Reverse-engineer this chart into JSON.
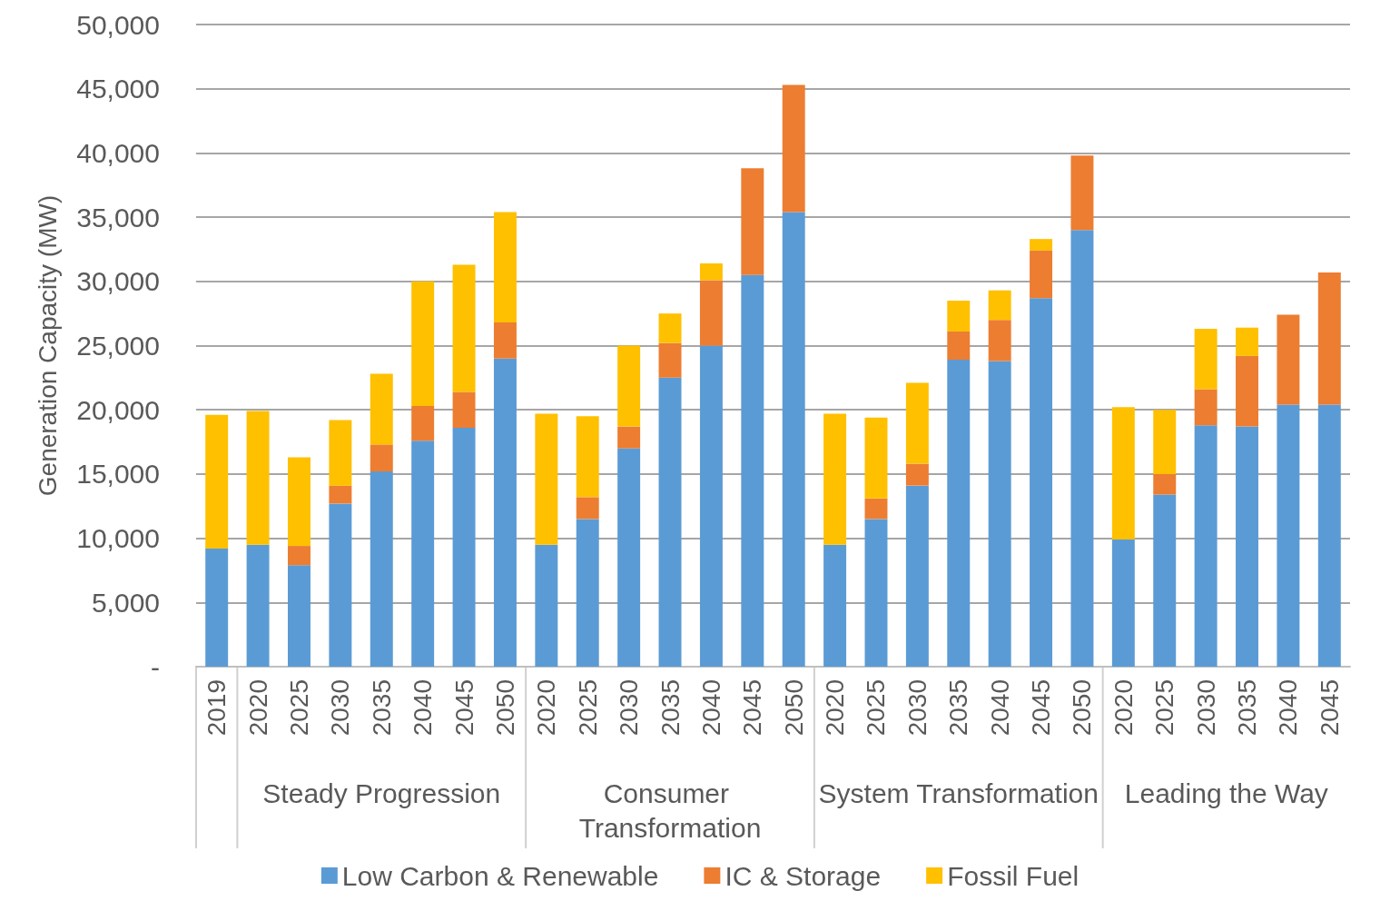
{
  "chart_data": {
    "type": "bar",
    "stacked": true,
    "ylabel": "Generation Capacity (MW)",
    "categories": [
      "2019",
      "2020",
      "2025",
      "2030",
      "2035",
      "2040",
      "2045",
      "2050",
      "2020",
      "2025",
      "2030",
      "2035",
      "2040",
      "2045",
      "2050",
      "2020",
      "2025",
      "2030",
      "2035",
      "2040",
      "2045",
      "2050",
      "2020",
      "2025",
      "2030",
      "2035",
      "2040",
      "2045"
    ],
    "series": [
      {
        "name": "Low Carbon & Renewable",
        "color": "#5b9bd5",
        "values": [
          9200,
          9500,
          7900,
          12700,
          15200,
          17600,
          18600,
          24000,
          9500,
          11500,
          17000,
          22500,
          25000,
          30500,
          35400,
          9500,
          11500,
          14100,
          23900,
          23800,
          28700,
          34000,
          9900,
          13400,
          18800,
          18700,
          20400,
          20400
        ]
      },
      {
        "name": "IC & Storage",
        "color": "#ed7d31",
        "values": [
          0,
          0,
          1500,
          1400,
          2100,
          2700,
          2800,
          2800,
          0,
          1700,
          1700,
          2700,
          5100,
          8300,
          9900,
          0,
          1600,
          1700,
          2200,
          3200,
          3700,
          5800,
          0,
          1600,
          2800,
          5500,
          7000,
          10300
        ]
      },
      {
        "name": "Fossil Fuel",
        "color": "#ffc000",
        "values": [
          10400,
          10400,
          6900,
          5100,
          5500,
          9700,
          9900,
          8600,
          10200,
          6300,
          6300,
          2300,
          1300,
          0,
          0,
          10200,
          6300,
          6300,
          2400,
          2300,
          900,
          0,
          10300,
          5000,
          4700,
          2200,
          0,
          0
        ]
      }
    ],
    "ylim": [
      0,
      50000
    ],
    "yticks": [
      {
        "value": 0,
        "label": "-"
      },
      {
        "value": 5000,
        "label": "5,000"
      },
      {
        "value": 10000,
        "label": "10,000"
      },
      {
        "value": 15000,
        "label": "15,000"
      },
      {
        "value": 20000,
        "label": "20,000"
      },
      {
        "value": 25000,
        "label": "25,000"
      },
      {
        "value": 30000,
        "label": "30,000"
      },
      {
        "value": 35000,
        "label": "35,000"
      },
      {
        "value": 40000,
        "label": "40,000"
      },
      {
        "value": 45000,
        "label": "45,000"
      },
      {
        "value": 50000,
        "label": "50,000"
      }
    ],
    "annotations": [
      "Steady Progression",
      "Consumer Transformation",
      "System Transformation",
      "Leading the Way"
    ],
    "grid": "y",
    "legend": "bottom"
  }
}
